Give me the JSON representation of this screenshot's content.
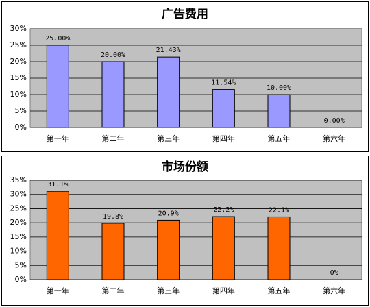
{
  "chart_data": [
    {
      "type": "bar",
      "title": "广告费用",
      "categories": [
        "第一年",
        "第二年",
        "第三年",
        "第四年",
        "第五年",
        "第六年"
      ],
      "values": [
        25,
        20,
        21.43,
        11.54,
        10,
        0
      ],
      "value_labels": [
        "25.00%",
        "20.00%",
        "21.43%",
        "11.54%",
        "10.00%",
        "0.00%"
      ],
      "color": "#9999ff",
      "ylim": [
        0,
        30
      ],
      "yticks": [
        {
          "value": 0,
          "label": "0%"
        },
        {
          "value": 5,
          "label": "5%"
        },
        {
          "value": 10,
          "label": "10%"
        },
        {
          "value": 15,
          "label": "15%"
        },
        {
          "value": 20,
          "label": "20%"
        },
        {
          "value": 25,
          "label": "25%"
        },
        {
          "value": 30,
          "label": "30%"
        }
      ],
      "grid": true
    },
    {
      "type": "bar",
      "title": "市场份额",
      "categories": [
        "第一年",
        "第二年",
        "第三年",
        "第四年",
        "第五年",
        "第六年"
      ],
      "values": [
        31.1,
        19.8,
        20.9,
        22.2,
        22.1,
        0
      ],
      "value_labels": [
        "31.1%",
        "19.8%",
        "20.9%",
        "22.2%",
        "22.1%",
        "0%"
      ],
      "color": "#ff6600",
      "ylim": [
        0,
        35
      ],
      "yticks": [
        {
          "value": 0,
          "label": "0%"
        },
        {
          "value": 5,
          "label": "5%"
        },
        {
          "value": 10,
          "label": "10%"
        },
        {
          "value": 15,
          "label": "15%"
        },
        {
          "value": 20,
          "label": "20%"
        },
        {
          "value": 25,
          "label": "25%"
        },
        {
          "value": 30,
          "label": "30%"
        },
        {
          "value": 35,
          "label": "35%"
        }
      ],
      "grid": true
    }
  ]
}
